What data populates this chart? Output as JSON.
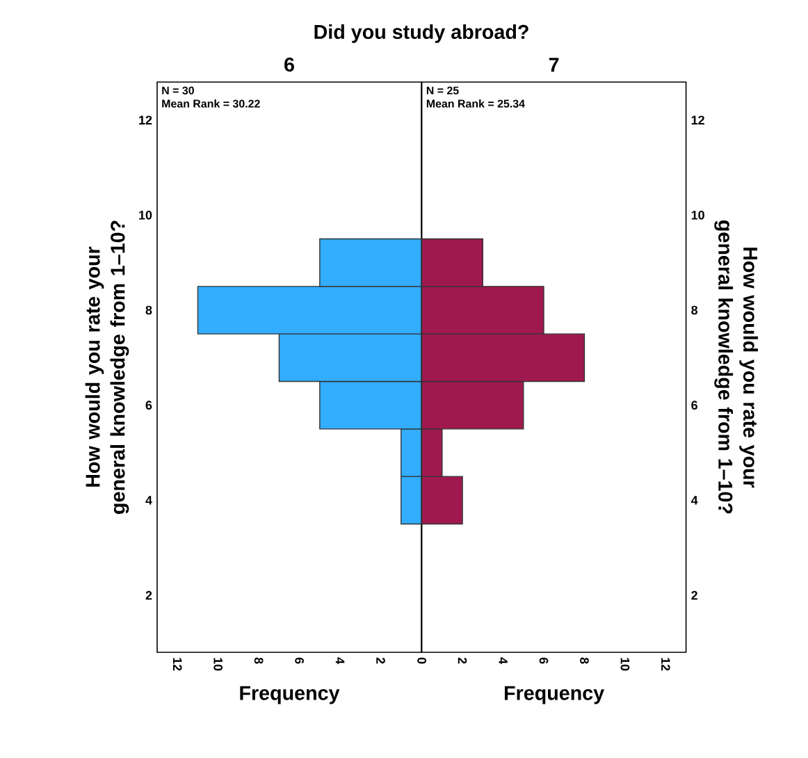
{
  "chart_data": [
    {
      "type": "histogram",
      "orientation": "horizontal",
      "title": "Did you study abroad?",
      "subtitle": "6",
      "xlabel": "Frequency",
      "ylabel": "How would you rate your general knowledge from 1–10?",
      "annotations": [
        "N = 30",
        "Mean Rank = 30.22"
      ],
      "bins": [
        3.5,
        4.5,
        5.5,
        6.5,
        7.5,
        8.5,
        9.5
      ],
      "values": [
        1,
        1,
        5,
        7,
        11,
        5
      ],
      "color": "#33adff",
      "xlim": [
        13,
        0
      ],
      "xticks": [
        2,
        4,
        6,
        8,
        10,
        12
      ],
      "ylim": [
        0.8,
        12.8
      ],
      "yticks": [
        2,
        4,
        6,
        8,
        10,
        12
      ]
    },
    {
      "type": "histogram",
      "orientation": "horizontal",
      "subtitle": "7",
      "xlabel": "Frequency",
      "ylabel": "How would you rate your general knowledge from 1–10?",
      "annotations": [
        "N = 25",
        "Mean Rank = 25.34"
      ],
      "bins": [
        3.5,
        4.5,
        5.5,
        6.5,
        7.5,
        8.5,
        9.5
      ],
      "values": [
        2,
        1,
        5,
        8,
        6,
        3
      ],
      "color": "#a0194e",
      "xlim": [
        0,
        13
      ],
      "xticks": [
        0,
        2,
        4,
        6,
        8,
        10,
        12
      ],
      "ylim": [
        0.8,
        12.8
      ],
      "yticks": [
        2,
        4,
        6,
        8,
        10,
        12
      ]
    }
  ]
}
